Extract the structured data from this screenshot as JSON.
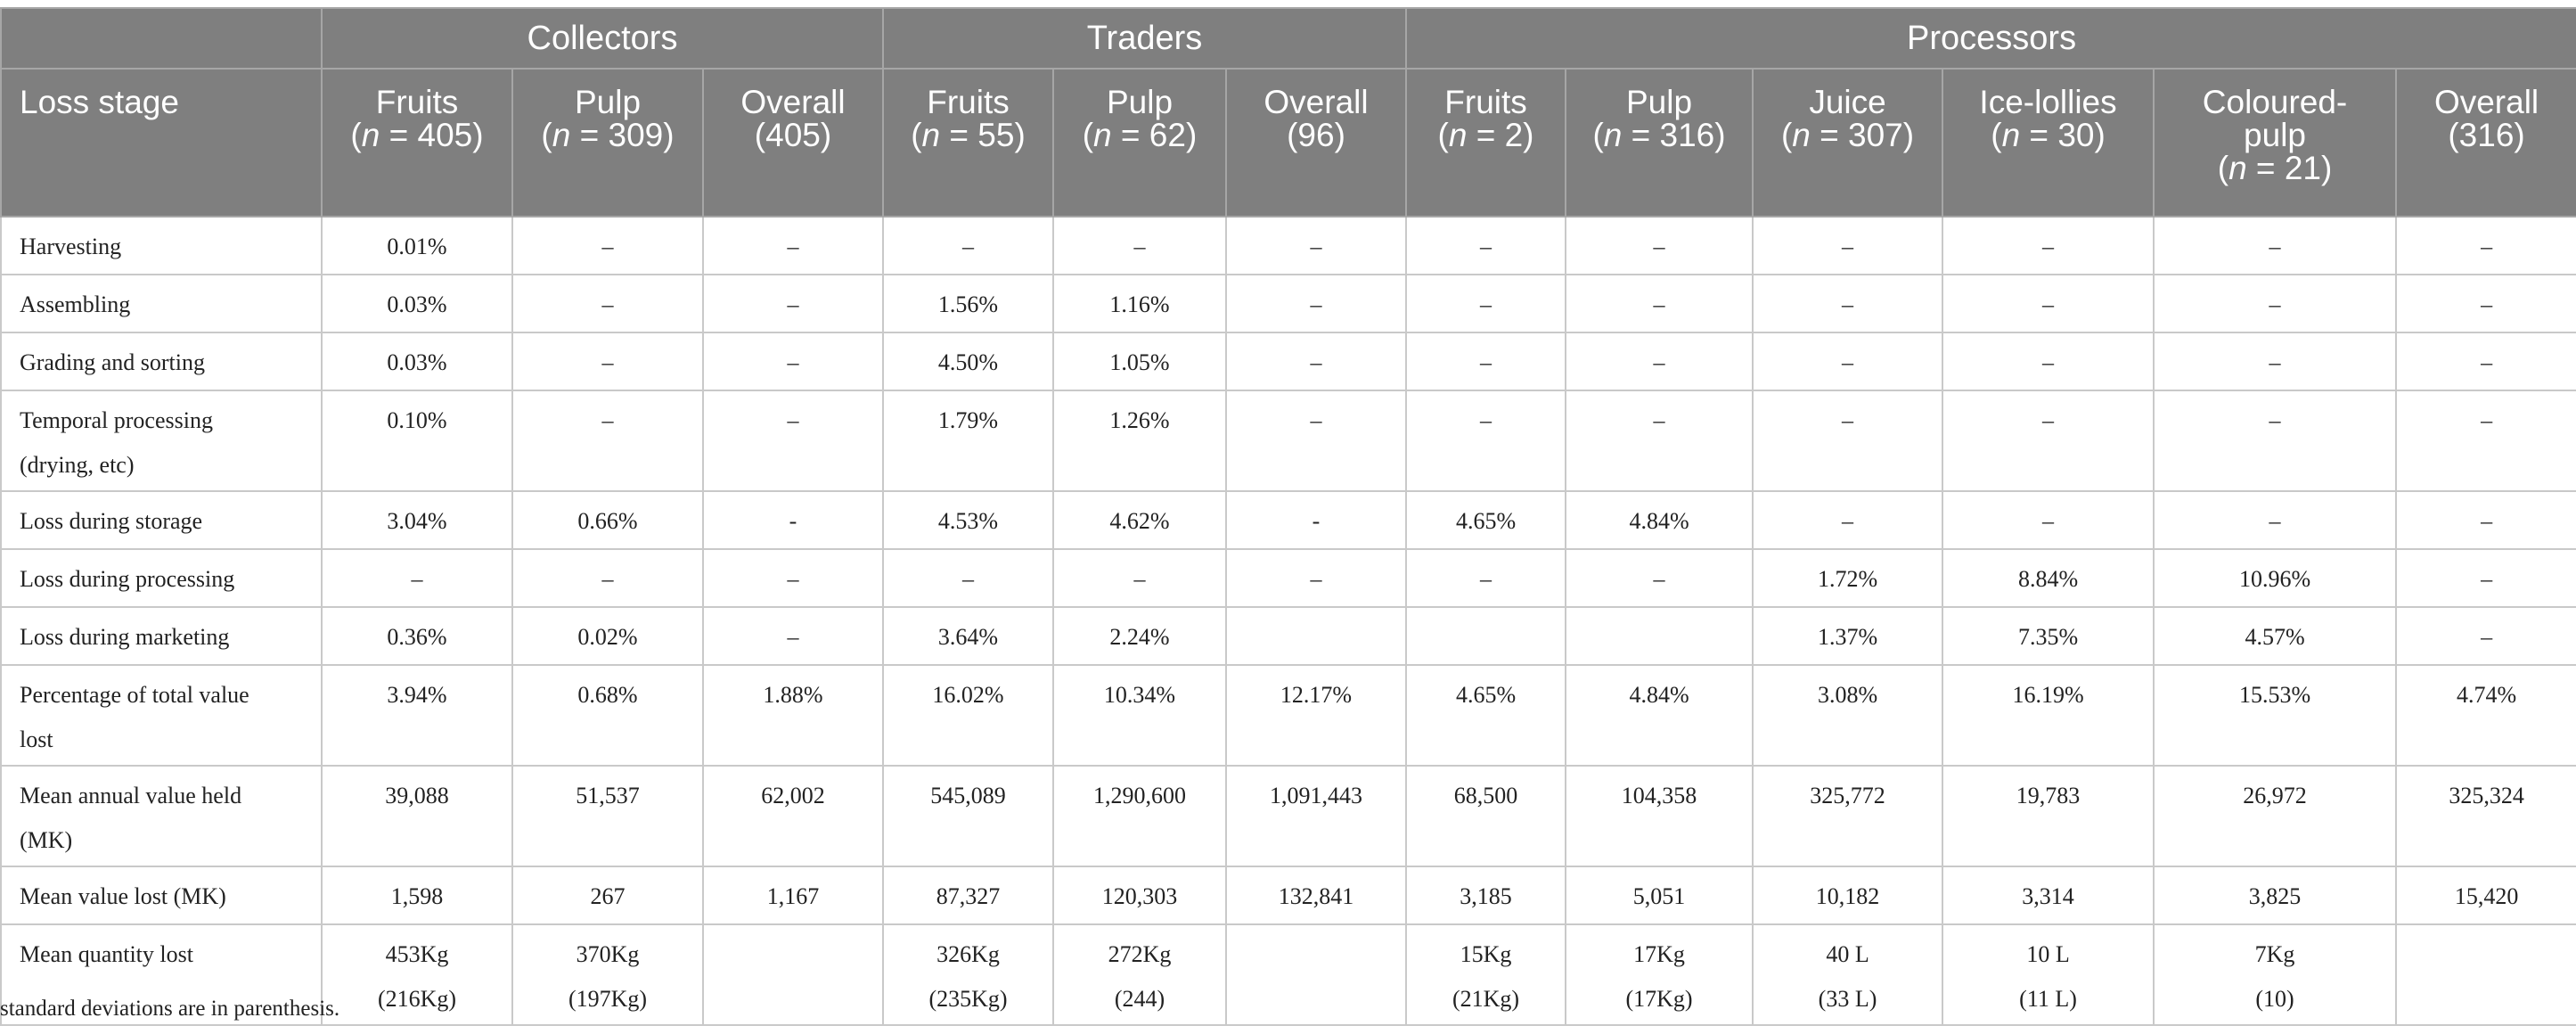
{
  "groups": {
    "collectors": "Collectors",
    "traders": "Traders",
    "processors": "Processors"
  },
  "columns": {
    "stage_header": "Loss stage",
    "c_fruits": {
      "name": "Fruits",
      "n_pre": "(",
      "n_var": "n",
      "n_post": " = 405)"
    },
    "c_pulp": {
      "name": "Pulp",
      "n_pre": "(",
      "n_var": "n",
      "n_post": " = 309)"
    },
    "c_overall": {
      "name": "Overall",
      "sub": "(405)"
    },
    "t_fruits": {
      "name": "Fruits",
      "n_pre": "(",
      "n_var": "n",
      "n_post": " = 55)"
    },
    "t_pulp": {
      "name": "Pulp",
      "n_pre": "(",
      "n_var": "n",
      "n_post": " = 62)"
    },
    "t_overall": {
      "name": "Overall",
      "sub": "(96)"
    },
    "p_fruits": {
      "name": "Fruits",
      "n_pre": "(",
      "n_var": "n",
      "n_post": " = 2)"
    },
    "p_pulp": {
      "name": "Pulp",
      "n_pre": "(",
      "n_var": "n",
      "n_post": " = 316)"
    },
    "p_juice": {
      "name": "Juice",
      "n_pre": "(",
      "n_var": "n",
      "n_post": " = 307)"
    },
    "p_ice": {
      "name": "Ice-lollies",
      "n_pre": "(",
      "n_var": "n",
      "n_post": " = 30)"
    },
    "p_col": {
      "name1": "Coloured-",
      "name2": "pulp",
      "n_pre": "(",
      "n_var": "n",
      "n_post": " = 21)"
    },
    "p_overall": {
      "name": "Overall",
      "sub": "(316)"
    }
  },
  "rows": [
    {
      "label": [
        "Harvesting"
      ],
      "cells": [
        "0.01%",
        "–",
        "–",
        "–",
        "–",
        "–",
        "–",
        "–",
        "–",
        "–",
        "–",
        "–"
      ]
    },
    {
      "label": [
        "Assembling"
      ],
      "cells": [
        "0.03%",
        "–",
        "–",
        "1.56%",
        "1.16%",
        "–",
        "–",
        "–",
        "–",
        "–",
        "–",
        "–"
      ]
    },
    {
      "label": [
        "Grading and sorting"
      ],
      "cells": [
        "0.03%",
        "–",
        "–",
        "4.50%",
        "1.05%",
        "–",
        "–",
        "–",
        "–",
        "–",
        "–",
        "–"
      ]
    },
    {
      "label": [
        "Temporal processing",
        "(drying, etc)"
      ],
      "cells": [
        "0.10%",
        "–",
        "–",
        "1.79%",
        "1.26%",
        "–",
        "–",
        "–",
        "–",
        "–",
        "–",
        "–"
      ]
    },
    {
      "label": [
        "Loss during storage"
      ],
      "cells": [
        "3.04%",
        "0.66%",
        "-",
        "4.53%",
        "4.62%",
        "-",
        "4.65%",
        "4.84%",
        "–",
        "–",
        "–",
        "–"
      ]
    },
    {
      "label": [
        "Loss during processing"
      ],
      "cells": [
        "–",
        "–",
        "–",
        "–",
        "–",
        "–",
        "–",
        "–",
        "1.72%",
        "8.84%",
        "10.96%",
        "–"
      ]
    },
    {
      "label": [
        "Loss during marketing"
      ],
      "cells": [
        "0.36%",
        "0.02%",
        "–",
        "3.64%",
        "2.24%",
        "",
        "",
        "",
        "1.37%",
        "7.35%",
        "4.57%",
        "–"
      ]
    },
    {
      "label": [
        "Percentage of total value",
        "lost"
      ],
      "cells": [
        "3.94%",
        "0.68%",
        "1.88%",
        "16.02%",
        "10.34%",
        "12.17%",
        "4.65%",
        "4.84%",
        "3.08%",
        "16.19%",
        "15.53%",
        "4.74%"
      ]
    },
    {
      "label": [
        "Mean annual value held",
        "(MK)"
      ],
      "cells": [
        "39,088",
        "51,537",
        "62,002",
        "545,089",
        "1,290,600",
        "1,091,443",
        "68,500",
        "104,358",
        "325,772",
        "19,783",
        "26,972",
        "325,324"
      ]
    },
    {
      "label": [
        "Mean value lost (MK)"
      ],
      "cells": [
        "1,598",
        "267",
        "1,167",
        "87,327",
        "120,303",
        "132,841",
        "3,185",
        "5,051",
        "10,182",
        "3,314",
        "3,825",
        "15,420"
      ]
    },
    {
      "label": [
        "Mean quantity lost"
      ],
      "cells2": [
        [
          "453Kg",
          "(216Kg)"
        ],
        [
          "370Kg",
          "(197Kg)"
        ],
        [
          "",
          ""
        ],
        [
          "326Kg",
          "(235Kg)"
        ],
        [
          "272Kg",
          "(244)"
        ],
        [
          "",
          ""
        ],
        [
          "15Kg",
          "(21Kg)"
        ],
        [
          "17Kg",
          "(17Kg)"
        ],
        [
          "40 L",
          "(33 L)"
        ],
        [
          "10 L",
          "(11 L)"
        ],
        [
          "7Kg",
          "(10)"
        ],
        [
          "",
          ""
        ]
      ]
    }
  ],
  "footnote": "standard deviations are in parenthesis."
}
